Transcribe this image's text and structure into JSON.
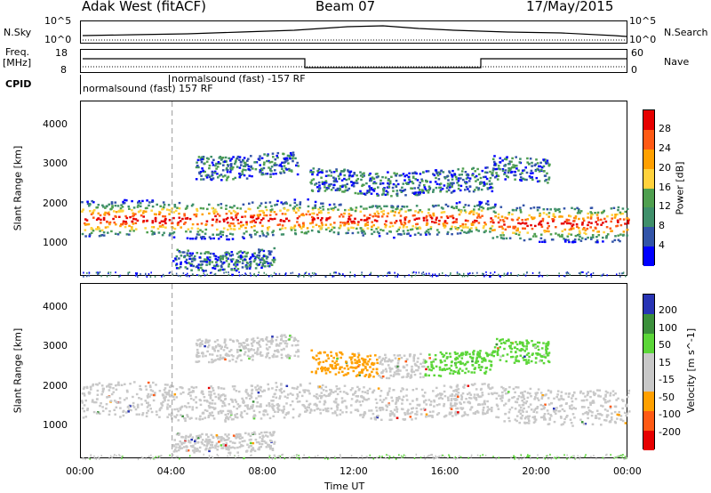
{
  "header": {
    "radar": "Adak West (fitACF)",
    "beam": "Beam 07",
    "date": "17/May/2015"
  },
  "top_panels": {
    "nsky_label": "N.Sky",
    "nsky_ticks": [
      "10^5",
      "10^0"
    ],
    "nsearch_label": "N.Search",
    "freq_label_1": "Freq.",
    "freq_label_2": "[MHz]",
    "freq_ticks": [
      "18",
      "8"
    ],
    "nave_ticks": [
      "60",
      "0"
    ],
    "nave_label": "Nave",
    "cpid_label": "CPID",
    "cpid_entries": [
      "normalsound (fast) 157 RF",
      "normalsound (fast) -157 RF"
    ]
  },
  "colors": {
    "power_scale": [
      "#0000ff",
      "#3254a8",
      "#3f8f6a",
      "#4f9f4f",
      "#ffd23c",
      "#ffa000",
      "#ff5a14",
      "#e60000"
    ],
    "velocity_scale": [
      "#e60000",
      "#ff5a14",
      "#ffa000",
      "#c8c8c8",
      "#c8c8c8",
      "#5bd638",
      "#3b8f3b",
      "#2834b4"
    ]
  },
  "chart_data": [
    {
      "type": "heatmap",
      "name": "power",
      "ylabel": "Slant Range [km]",
      "xlabel": "Time UT",
      "x_ticks": [
        "00:00",
        "04:00",
        "08:00",
        "12:00",
        "16:00",
        "20:00",
        "00:00"
      ],
      "y_ticks": [
        "1000",
        "2000",
        "3000",
        "4000"
      ],
      "ylim": [
        180,
        4600
      ],
      "colorbar_label": "Power [dB]",
      "colorbar_ticks": [
        "4",
        "8",
        "12",
        "16",
        "20",
        "24",
        "28"
      ],
      "bands_km": [
        {
          "t_start": 0,
          "t_end": 10,
          "center": 1650,
          "width": 450
        },
        {
          "t_start": 10,
          "t_end": 18,
          "center": 1650,
          "width": 400
        },
        {
          "t_start": 18,
          "t_end": 24,
          "center": 1550,
          "width": 450
        },
        {
          "t_start": 5,
          "t_end": 9.5,
          "center": 3000,
          "width": 300
        },
        {
          "t_start": 10,
          "t_end": 18,
          "center": 2600,
          "width": 300
        },
        {
          "t_start": 18,
          "t_end": 20.5,
          "center": 2900,
          "width": 300
        },
        {
          "t_start": 4,
          "t_end": 8.5,
          "center": 650,
          "width": 250
        }
      ]
    },
    {
      "type": "heatmap",
      "name": "velocity",
      "ylabel": "Slant Range [km]",
      "xlabel": "Time UT",
      "x_ticks": [
        "00:00",
        "04:00",
        "08:00",
        "12:00",
        "16:00",
        "20:00",
        "00:00"
      ],
      "y_ticks": [
        "1000",
        "2000",
        "3000",
        "4000"
      ],
      "ylim": [
        180,
        4600
      ],
      "colorbar_label": "Velocity [m s^-1]",
      "colorbar_ticks": [
        "-200",
        "-100",
        "-50",
        "-15",
        "15",
        "50",
        "100",
        "200"
      ]
    }
  ],
  "axis": {
    "xlabel": "Time UT"
  }
}
